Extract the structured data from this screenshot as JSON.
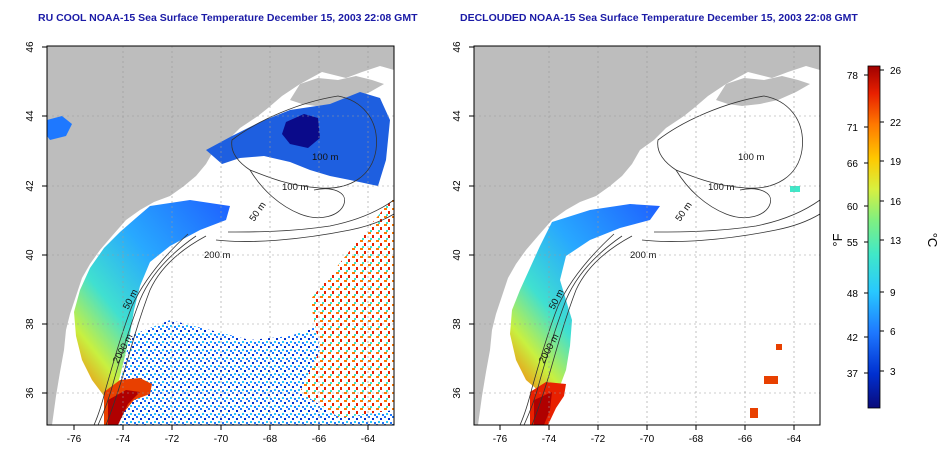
{
  "panels": [
    {
      "title": "RU COOL NOAA-15 Sea Surface Temperature December 15, 2003 22:08 GMT",
      "x_ticks": [
        "-76",
        "-74",
        "-72",
        "-70",
        "-68",
        "-66",
        "-64"
      ],
      "y_ticks": [
        "36",
        "38",
        "40",
        "42",
        "44",
        "46"
      ],
      "contour_labels": [
        "100 m",
        "100 m",
        "50 m",
        "200 m",
        "2000 m",
        "50 m"
      ]
    },
    {
      "title": "DECLOUDED NOAA-15 Sea Surface Temperature December 15, 2003 22:08 GMT",
      "x_ticks": [
        "-76",
        "-74",
        "-72",
        "-70",
        "-68",
        "-66",
        "-64"
      ],
      "y_ticks": [
        "36",
        "38",
        "40",
        "42",
        "44",
        "46"
      ],
      "contour_labels": [
        "100 m",
        "100 m",
        "50 m",
        "200 m",
        "2000 m",
        "50 m"
      ]
    }
  ],
  "colorbar": {
    "fahrenheit_unit": "°F",
    "celsius_unit": "°C",
    "fahrenheit_ticks": [
      "78",
      "71",
      "66",
      "60",
      "55",
      "48",
      "42",
      "37"
    ],
    "celsius_ticks": [
      "26",
      "22",
      "19",
      "16",
      "13",
      "9",
      "6",
      "3"
    ],
    "colors": [
      "#0a0a7a",
      "#0030d0",
      "#1e78ff",
      "#28c8ff",
      "#40e8c8",
      "#80f080",
      "#d8f040",
      "#ffc800",
      "#ff7800",
      "#e82000",
      "#a00000"
    ]
  }
}
